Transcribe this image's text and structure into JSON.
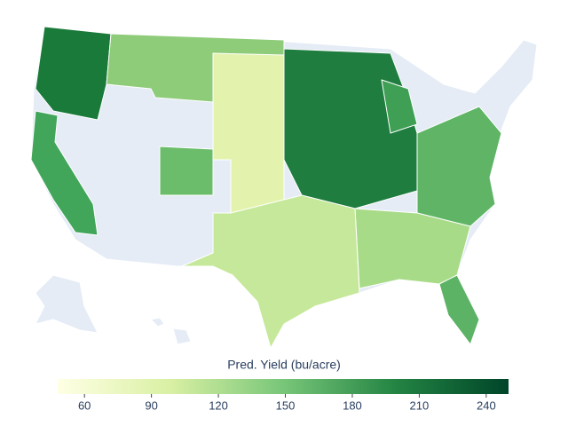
{
  "map": {
    "colorbar": {
      "title": "Pred. Yield (bu/acre)",
      "range": [
        48,
        250
      ],
      "ticks": [
        60,
        90,
        120,
        150,
        180,
        210,
        240
      ],
      "colors": [
        "#ffffe5",
        "#d9f0a3",
        "#78c679",
        "#238443",
        "#004529"
      ]
    }
  }
}
